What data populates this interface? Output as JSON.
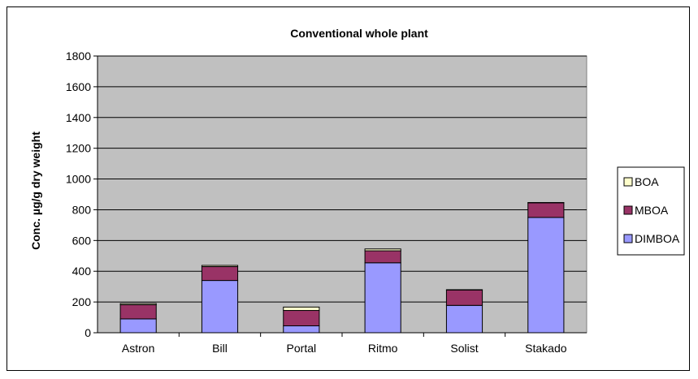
{
  "chart_data": {
    "type": "bar",
    "stacked": true,
    "title": "Conventional whole plant",
    "xlabel": "",
    "ylabel": "Conc. µg/g dry weight",
    "ylim": [
      0,
      1800
    ],
    "yticks": [
      0,
      200,
      400,
      600,
      800,
      1000,
      1200,
      1400,
      1600,
      1800
    ],
    "grid": true,
    "legend_position": "right",
    "categories": [
      "Astron",
      "Bill",
      "Portal",
      "Ritmo",
      "Solist",
      "Stakado"
    ],
    "series": [
      {
        "name": "DIMBOA",
        "color": "#9999ff",
        "values": [
          90,
          340,
          45,
          455,
          178,
          750
        ]
      },
      {
        "name": "MBOA",
        "color": "#993366",
        "values": [
          92,
          90,
          100,
          78,
          100,
          95
        ]
      },
      {
        "name": "BOA",
        "color": "#ffffcc",
        "values": [
          8,
          8,
          22,
          12,
          2,
          2
        ]
      }
    ],
    "colors": {
      "plot_background": "#c0c0c0",
      "gridline": "#000000",
      "bar_outline": "#000000"
    }
  }
}
